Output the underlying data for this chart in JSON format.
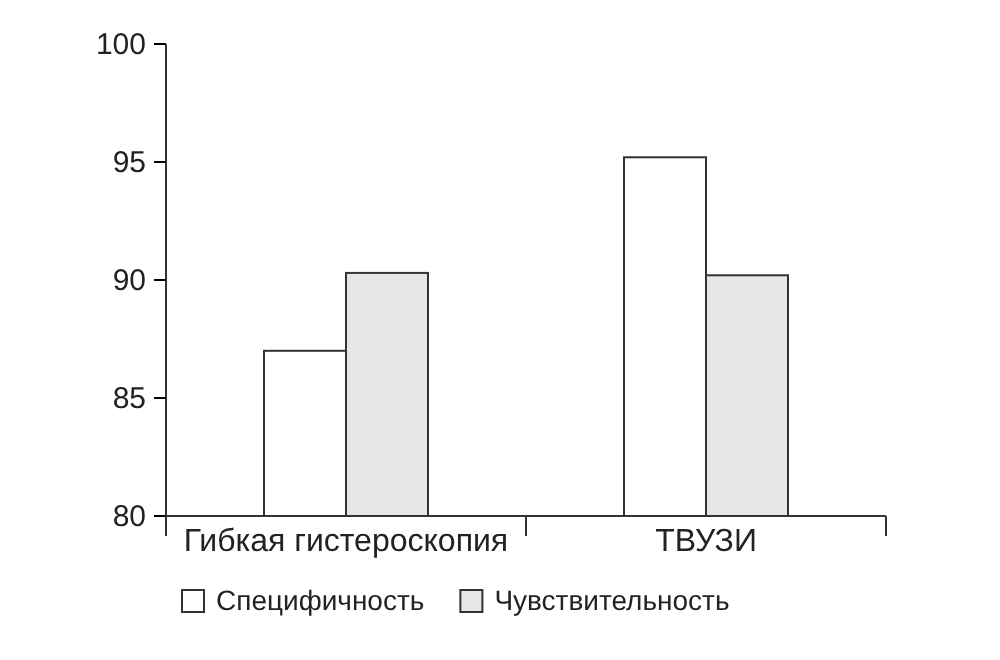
{
  "chart_data": {
    "type": "bar",
    "categories": [
      "Гибкая гистероскопия",
      "ТВУЗИ"
    ],
    "series": [
      {
        "name": "Специфичность",
        "color": "#ffffff",
        "values": [
          87.0,
          95.2
        ]
      },
      {
        "name": "Чувствительность",
        "color": "#e6e6e6",
        "values": [
          90.3,
          90.2
        ]
      }
    ],
    "ylim": [
      80,
      100
    ],
    "yticks": [
      80,
      85,
      90,
      95,
      100
    ],
    "grid": false,
    "legend": "bottom"
  }
}
